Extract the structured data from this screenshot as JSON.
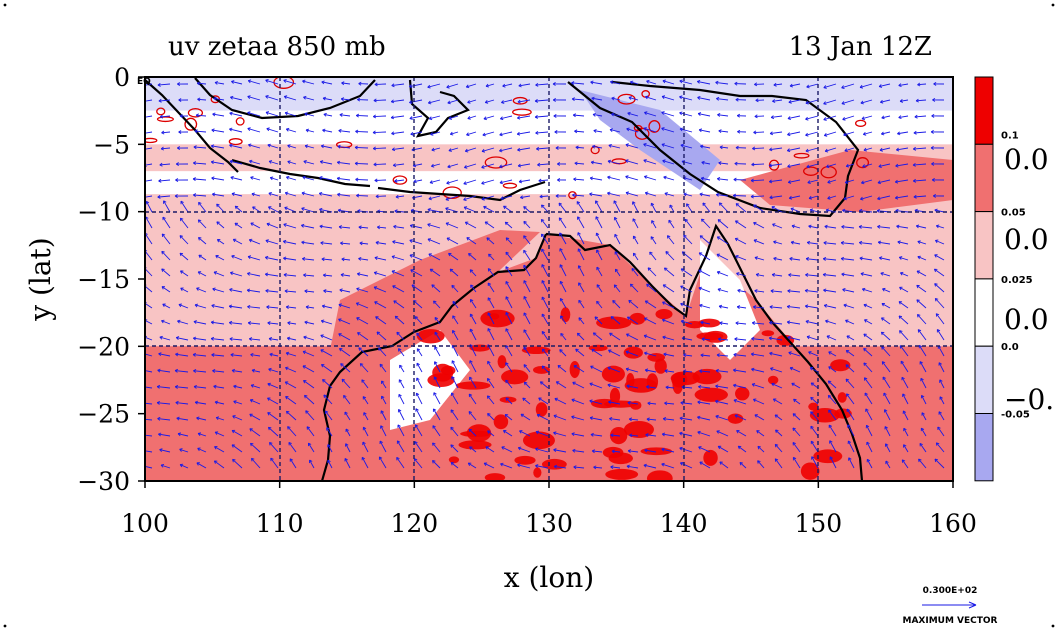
{
  "chart_data": {
    "type": "heatmap",
    "title_left": "uv zetaa 850 mb",
    "title_right": "13 Jan 12Z",
    "xlabel": "x (lon)",
    "ylabel": "y (lat)",
    "xlim": [
      100,
      160
    ],
    "ylim": [
      -30,
      0
    ],
    "x_ticks": [
      "100",
      "110",
      "120",
      "130",
      "140",
      "150",
      "160"
    ],
    "y_ticks": [
      "0",
      "−5",
      "−10",
      "−15",
      "−20",
      "−25",
      "−30"
    ],
    "corner_label": "EQ",
    "grid": true,
    "colorbar": {
      "levels": [
        "0.1",
        "0.05",
        "0.025",
        "0.0",
        "-0.05"
      ],
      "side_labels": [
        "0.0",
        "0.0",
        "0.0",
        "−0."
      ],
      "colors": [
        "#ee0000",
        "#f07070",
        "#f8c4c4",
        "#ffffff",
        "#dcdcf8",
        "#a8a8f0"
      ]
    },
    "vector_key": {
      "value": "0.300E+02",
      "label": "MAXIMUM VECTOR"
    },
    "colors": {
      "coast": "#000000",
      "contour": "#dd0000",
      "vector": "#1a1ae6",
      "grid": "#000080"
    }
  }
}
